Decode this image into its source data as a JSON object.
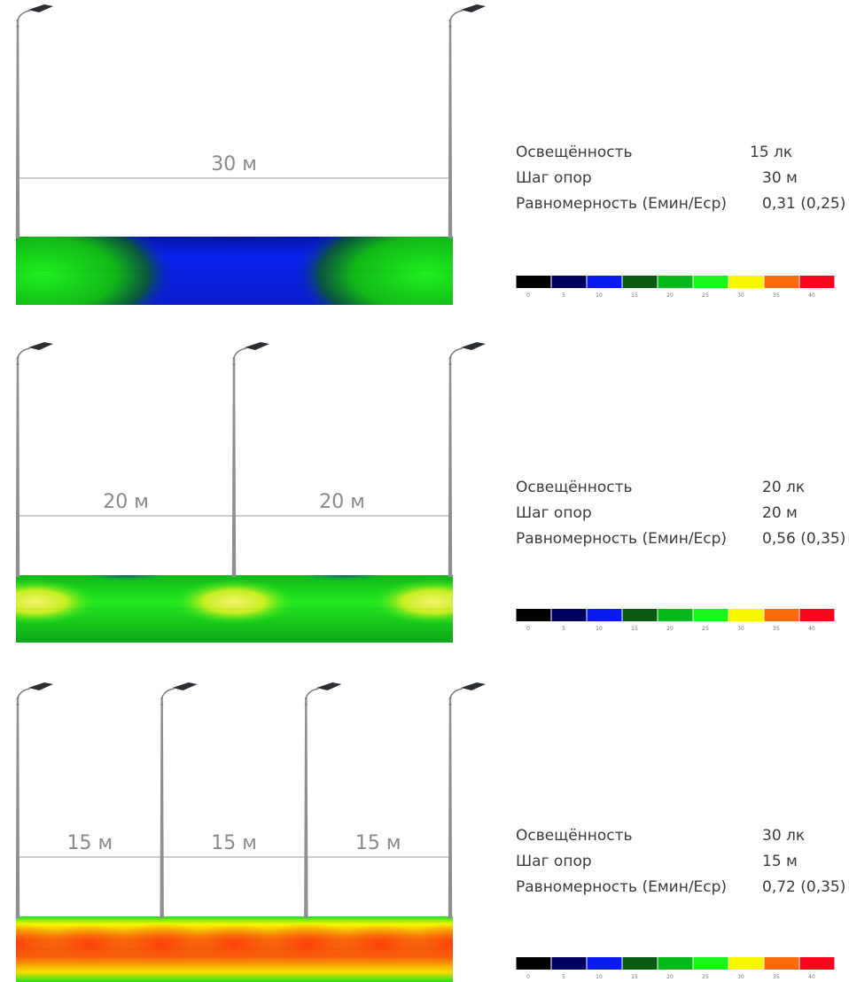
{
  "labels": {
    "illuminance": "Освещённость",
    "pole_spacing": "Шаг опор",
    "uniformity": "Равномерность (Емин/Еср)"
  },
  "panels": [
    {
      "illuminance": "15 лк",
      "spacing": "30 м",
      "uniformity": "0,31 (0,25)",
      "span_label": "30 м",
      "spans": 1,
      "road": "low"
    },
    {
      "illuminance": "20 лк",
      "spacing": "20 м",
      "uniformity": "0,56 (0,35)",
      "span_label": "20 м",
      "spans": 2,
      "road": "mid"
    },
    {
      "illuminance": "30 лк",
      "spacing": "15 м",
      "uniformity": "0,72 (0,35)",
      "span_label": "15 м",
      "spans": 3,
      "road": "high"
    }
  ],
  "color_scale": {
    "ticks": [
      "0",
      "5",
      "10",
      "15",
      "20",
      "25",
      "30",
      "35",
      "40"
    ],
    "colors": [
      "#000000",
      "#00005e",
      "#0a1bf0",
      "#0a5a12",
      "#06b81a",
      "#1cf51c",
      "#f7f700",
      "#f86a0b",
      "#f7071c"
    ]
  }
}
